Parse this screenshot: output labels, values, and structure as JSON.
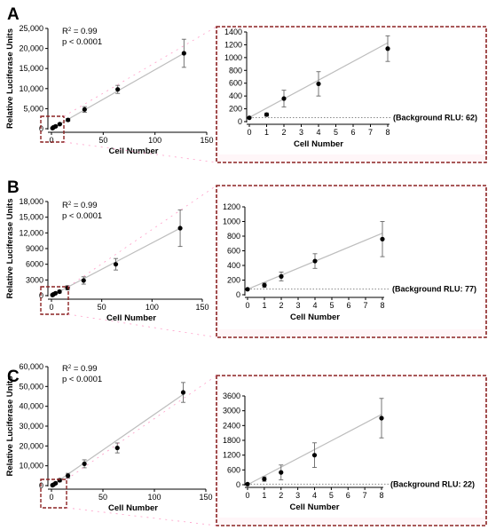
{
  "chart_data": [
    {
      "panel": "A",
      "type": "scatter",
      "xlabel": "Cell Number",
      "ylabel": "Relative Luciferase Units",
      "xlim": [
        0,
        150
      ],
      "ylim": [
        0,
        25000
      ],
      "xticks": [
        0,
        50,
        100,
        150
      ],
      "yticks": [
        0,
        5000,
        10000,
        15000,
        20000,
        25000
      ],
      "xtick_labels": [
        "0",
        "50",
        "100",
        "150"
      ],
      "ytick_labels": [
        "0",
        "5,000",
        "10,000",
        "15,000",
        "20,000",
        "25,000"
      ],
      "annotations": {
        "r2_prefix": "R",
        "r2_exp": "2",
        "r2_value": " = 0.99",
        "p_value": "p < 0.0001"
      },
      "points": [
        {
          "x": 1,
          "y": 150,
          "err": 40
        },
        {
          "x": 2,
          "y": 360,
          "err": 90
        },
        {
          "x": 4,
          "y": 590,
          "err": 150
        },
        {
          "x": 8,
          "y": 1150,
          "err": 200
        },
        {
          "x": 16,
          "y": 2200,
          "err": 350
        },
        {
          "x": 32,
          "y": 4800,
          "err": 700
        },
        {
          "x": 64,
          "y": 9800,
          "err": 1000
        },
        {
          "x": 128,
          "y": 18800,
          "err": 3500
        }
      ],
      "fit": {
        "x0": 0,
        "y0": 0,
        "x1": 128,
        "y1": 18800
      },
      "inset": {
        "xlabel": "Cell Number",
        "xlim": [
          0,
          8
        ],
        "ylim": [
          0,
          1400
        ],
        "xticks": [
          0,
          1,
          2,
          3,
          4,
          5,
          6,
          7,
          8
        ],
        "yticks": [
          0,
          200,
          400,
          600,
          800,
          1000,
          1200,
          1400
        ],
        "xtick_labels": [
          "0",
          "1",
          "2",
          "3",
          "4",
          "5",
          "6",
          "7",
          "8"
        ],
        "ytick_labels": [
          "0",
          "200",
          "400",
          "600",
          "800",
          "1000",
          "1200",
          "1400"
        ],
        "background_value": 62,
        "background_label": "(Background RLU: 62)",
        "points": [
          {
            "x": 0,
            "y": 60,
            "err": 0
          },
          {
            "x": 1,
            "y": 110,
            "err": 25
          },
          {
            "x": 2,
            "y": 360,
            "err": 130
          },
          {
            "x": 4,
            "y": 590,
            "err": 190
          },
          {
            "x": 8,
            "y": 1140,
            "err": 200
          }
        ],
        "fit": {
          "x0": 0,
          "y0": 65,
          "x1": 8,
          "y1": 1230
        }
      }
    },
    {
      "panel": "B",
      "type": "scatter",
      "xlabel": "Cell Number",
      "ylabel": "Relative Luciferase Units",
      "xlim": [
        0,
        150
      ],
      "ylim": [
        0,
        18000
      ],
      "xticks": [
        0,
        50,
        100,
        150
      ],
      "yticks": [
        0,
        3000,
        6000,
        9000,
        12000,
        15000,
        18000
      ],
      "xtick_labels": [
        "0",
        "50",
        "100",
        "150"
      ],
      "ytick_labels": [
        "0",
        "3000",
        "6000",
        "9000",
        "12,000",
        "15,000",
        "18,000"
      ],
      "annotations": {
        "r2_prefix": "R",
        "r2_exp": "2",
        "r2_value": " = 0.99",
        "p_value": "p < 0.0001"
      },
      "points": [
        {
          "x": 1,
          "y": 130,
          "err": 30
        },
        {
          "x": 2,
          "y": 250,
          "err": 60
        },
        {
          "x": 4,
          "y": 460,
          "err": 100
        },
        {
          "x": 8,
          "y": 760,
          "err": 250
        },
        {
          "x": 16,
          "y": 1500,
          "err": 400
        },
        {
          "x": 32,
          "y": 2900,
          "err": 700
        },
        {
          "x": 64,
          "y": 6000,
          "err": 1100
        },
        {
          "x": 128,
          "y": 12900,
          "err": 3500
        }
      ],
      "fit": {
        "x0": 0,
        "y0": 0,
        "x1": 128,
        "y1": 12900
      },
      "inset": {
        "xlabel": "Cell Number",
        "xlim": [
          0,
          8
        ],
        "ylim": [
          0,
          1200
        ],
        "xticks": [
          0,
          1,
          2,
          3,
          4,
          5,
          6,
          7,
          8
        ],
        "yticks": [
          0,
          200,
          400,
          600,
          800,
          1000,
          1200
        ],
        "xtick_labels": [
          "0",
          "1",
          "2",
          "3",
          "4",
          "5",
          "6",
          "7",
          "8"
        ],
        "ytick_labels": [
          "0",
          "200",
          "400",
          "600",
          "800",
          "1000",
          "1200"
        ],
        "background_value": 77,
        "background_label": "(Background RLU: 77)",
        "points": [
          {
            "x": 0,
            "y": 75,
            "err": 0
          },
          {
            "x": 1,
            "y": 130,
            "err": 30
          },
          {
            "x": 2,
            "y": 250,
            "err": 60
          },
          {
            "x": 4,
            "y": 460,
            "err": 100
          },
          {
            "x": 8,
            "y": 760,
            "err": 240
          }
        ],
        "fit": {
          "x0": 0,
          "y0": 75,
          "x1": 8,
          "y1": 840
        }
      }
    },
    {
      "panel": "C",
      "type": "scatter",
      "xlabel": "Cell Number",
      "ylabel": "Relative Luciferase Units",
      "xlim": [
        0,
        150
      ],
      "ylim": [
        0,
        60000
      ],
      "xticks": [
        0,
        50,
        100,
        150
      ],
      "yticks": [
        0,
        10000,
        20000,
        30000,
        40000,
        50000,
        60000
      ],
      "xtick_labels": [
        "0",
        "50",
        "100",
        "150"
      ],
      "ytick_labels": [
        "0",
        "10,000",
        "20,000",
        "30,000",
        "40,000",
        "50,000",
        "60,000"
      ],
      "annotations": {
        "r2_prefix": "R",
        "r2_exp": "2",
        "r2_value": " = 0.99",
        "p_value": "p < 0.0001"
      },
      "points": [
        {
          "x": 1,
          "y": 220,
          "err": 100
        },
        {
          "x": 2,
          "y": 480,
          "err": 300
        },
        {
          "x": 4,
          "y": 1200,
          "err": 500
        },
        {
          "x": 8,
          "y": 2700,
          "err": 800
        },
        {
          "x": 16,
          "y": 5000,
          "err": 1200
        },
        {
          "x": 32,
          "y": 11000,
          "err": 2000
        },
        {
          "x": 64,
          "y": 19000,
          "err": 2500
        },
        {
          "x": 128,
          "y": 47000,
          "err": 5000
        }
      ],
      "fit": {
        "x0": 0,
        "y0": 0,
        "x1": 128,
        "y1": 46000
      },
      "inset": {
        "xlabel": "Cell Number",
        "xlim": [
          0,
          8
        ],
        "ylim": [
          0,
          3600
        ],
        "xticks": [
          0,
          1,
          2,
          3,
          4,
          5,
          6,
          7,
          8
        ],
        "yticks": [
          0,
          600,
          1200,
          1800,
          2400,
          3000,
          3600
        ],
        "xtick_labels": [
          "0",
          "1",
          "2",
          "3",
          "4",
          "5",
          "6",
          "7",
          "8"
        ],
        "ytick_labels": [
          "0",
          "600",
          "1200",
          "1800",
          "2400",
          "3000",
          "3600"
        ],
        "background_value": 22,
        "background_label": "(Background RLU: 22)",
        "points": [
          {
            "x": 0,
            "y": 25,
            "err": 0
          },
          {
            "x": 1,
            "y": 230,
            "err": 90
          },
          {
            "x": 2,
            "y": 500,
            "err": 300
          },
          {
            "x": 4,
            "y": 1200,
            "err": 500
          },
          {
            "x": 8,
            "y": 2700,
            "err": 800
          }
        ],
        "fit": {
          "x0": 0,
          "y0": 0,
          "x1": 8,
          "y1": 2850
        }
      }
    }
  ],
  "colors": {
    "fit_line": "#bdbdbd",
    "error_bar": "#666666",
    "point": "#000000",
    "highlight_box": "#8b2323",
    "inset_border": "#8b2323",
    "inset_background": "#fff6f8",
    "background_line": "#888888",
    "connector": "#ff9ec8",
    "axis": "#000000"
  }
}
